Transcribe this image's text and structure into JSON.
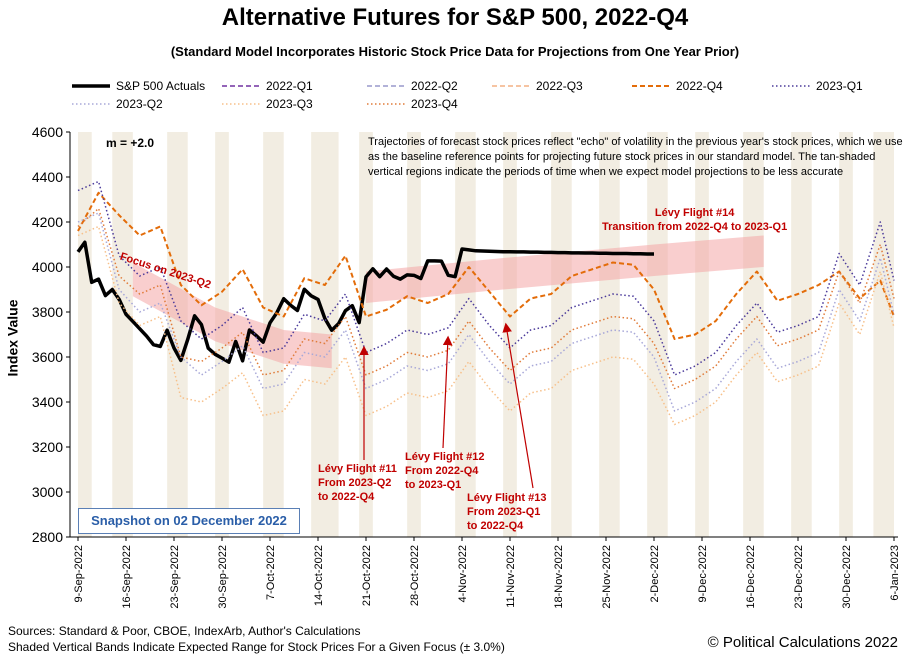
{
  "header": {
    "title": "Alternative Futures for S&P 500, 2022-Q4",
    "subtitle": "(Standard Model Incorporates Historic Stock Price Data for Projections from One Year Prior)"
  },
  "legend": [
    {
      "label": "S&P 500 Actuals",
      "color": "#000000",
      "style": "solid-thick"
    },
    {
      "label": "2022-Q1",
      "color": "#7030a0",
      "style": "dash"
    },
    {
      "label": "2022-Q2",
      "color": "#9999cc",
      "style": "dash"
    },
    {
      "label": "2022-Q3",
      "color": "#f4b183",
      "style": "dash"
    },
    {
      "label": "2022-Q4",
      "color": "#e36c09",
      "style": "dash-thick"
    },
    {
      "label": "2023-Q1",
      "color": "#4b3a9a",
      "style": "dot"
    },
    {
      "label": "2023-Q2",
      "color": "#a8a8d8",
      "style": "dot"
    },
    {
      "label": "2023-Q3",
      "color": "#f7c08a",
      "style": "dot"
    },
    {
      "label": "2023-Q4",
      "color": "#e07b39",
      "style": "dot"
    }
  ],
  "annotations": {
    "slope": "m = +2.0",
    "note": "Trajectories of forecast stock prices reflect \"echo\" of volatility in  the previous year's stock prices, which we use as the baseline reference points for projecting future stock prices in our standard model.   The tan-shaded vertical regions indicate the periods of time when we expect model projections to be less accurate",
    "focus": "Focus on 2023-Q2",
    "levy14": [
      "Lévy Flight #14",
      "Transition from 2022-Q4 to 2023-Q1"
    ],
    "levy11": [
      "Lévy Flight #11",
      "From 2023-Q2",
      "to 2022-Q4"
    ],
    "levy12": [
      "Lévy Flight #12",
      "From 2022-Q4",
      "to 2023-Q1"
    ],
    "levy13": [
      "Lévy Flight #13",
      "From 2023-Q1",
      "to 2022-Q4"
    ],
    "snapshot": "Snapshot on 02 December 2022"
  },
  "footer": {
    "sources": "Sources: Standard & Poor, CBOE, IndexArb, Author's Calculations",
    "bands": "Shaded Vertical Bands Indicate Expected Range for Stock Prices For a Given Focus (± 3.0%)",
    "copyright": "© Political Calculations 2022"
  },
  "chart_data": {
    "type": "line",
    "title": "Alternative Futures for S&P 500, 2022-Q4",
    "xlabel": "",
    "ylabel": "Index Value",
    "ylim": [
      2800,
      4600
    ],
    "yticks": [
      2800,
      3000,
      3200,
      3400,
      3600,
      3800,
      4000,
      4200,
      4400,
      4600
    ],
    "xticks": [
      "9-Sep-2022",
      "16-Sep-2022",
      "23-Sep-2022",
      "30-Sep-2022",
      "7-Oct-2022",
      "14-Oct-2022",
      "21-Oct-2022",
      "28-Oct-2022",
      "4-Nov-2022",
      "11-Nov-2022",
      "18-Nov-2022",
      "25-Nov-2022",
      "2-Dec-2022",
      "9-Dec-2022",
      "16-Dec-2022",
      "23-Dec-2022",
      "30-Dec-2022",
      "6-Jan-2023"
    ],
    "x_days": 119,
    "grid": false,
    "legend_position": "top",
    "series": [
      {
        "name": "S&P 500 Actuals",
        "day": [
          0,
          1,
          2,
          3,
          4,
          5,
          6,
          7,
          8,
          10,
          11,
          12,
          13,
          14,
          15,
          16,
          17,
          18,
          19,
          20,
          21,
          22,
          23,
          24,
          25,
          26,
          27,
          28,
          29,
          30,
          31,
          32,
          33,
          34,
          35,
          36,
          37,
          38,
          39,
          40,
          41,
          42,
          43,
          44,
          45,
          46,
          47,
          48,
          49,
          50,
          51,
          52,
          53,
          54,
          55,
          56,
          57,
          58,
          59,
          60,
          61,
          62,
          63,
          64,
          65,
          66,
          67,
          68,
          69,
          70,
          71,
          72,
          73,
          74,
          75,
          76,
          77,
          78,
          79,
          80,
          81,
          82,
          83,
          84
        ],
        "values": [
          4067,
          4110,
          3932,
          3946,
          3873,
          3900,
          3856,
          3790,
          3758,
          3693,
          3655,
          3647,
          3719,
          3640,
          3585,
          3678,
          3783,
          3744,
          3639,
          3612,
          3595,
          3577,
          3669,
          3583,
          3720,
          3695,
          3666,
          3752,
          3797,
          3859,
          3830,
          3807,
          3901,
          3872,
          3856,
          3771,
          3719,
          3748,
          3806,
          3828,
          3753,
          3956,
          3992,
          3957,
          3991,
          3959,
          3946,
          3965,
          3963,
          3949,
          4027,
          4027,
          4026,
          3963,
          3957,
          4080,
          4076,
          4072,
          4071,
          4070,
          4069,
          4068,
          4068,
          4067,
          4067,
          4066,
          4066,
          4065,
          4065,
          4064,
          4064,
          4063,
          4063,
          4062,
          4062,
          4061,
          4061,
          4060,
          4060,
          4060,
          4059,
          4059,
          4058,
          4058
        ]
      },
      {
        "name": "2022-Q1",
        "values": []
      },
      {
        "name": "2022-Q2",
        "values": []
      },
      {
        "name": "2022-Q3",
        "values": []
      },
      {
        "name": "2022-Q4",
        "day": [
          0,
          3,
          6,
          9,
          12,
          15,
          18,
          21,
          24,
          27,
          30,
          33,
          36,
          39,
          42,
          45,
          48,
          51,
          54,
          57,
          60,
          63,
          66,
          69,
          72,
          75,
          78,
          81,
          84,
          87,
          90,
          93,
          96,
          99,
          102,
          105,
          108,
          111,
          114,
          117,
          119
        ],
        "values": [
          4160,
          4330,
          4230,
          4140,
          4180,
          3920,
          3830,
          3890,
          3990,
          3820,
          3780,
          3950,
          3920,
          4050,
          3780,
          3810,
          3870,
          3840,
          3880,
          4000,
          3890,
          3780,
          3860,
          3880,
          3960,
          3990,
          4020,
          4010,
          3900,
          3680,
          3700,
          3760,
          3880,
          3980,
          3850,
          3880,
          3920,
          3980,
          3860,
          3940,
          3780
        ]
      },
      {
        "name": "2023-Q1",
        "day": [
          0,
          3,
          6,
          9,
          12,
          15,
          18,
          21,
          24,
          27,
          30,
          33,
          36,
          39,
          42,
          45,
          48,
          51,
          54,
          57,
          60,
          63,
          66,
          69,
          72,
          75,
          78,
          81,
          84,
          87,
          90,
          93,
          96,
          99,
          102,
          105,
          108,
          111,
          114,
          117,
          119
        ],
        "values": [
          4340,
          4380,
          4050,
          3960,
          4000,
          3760,
          3680,
          3740,
          3820,
          3620,
          3640,
          3790,
          3760,
          3880,
          3620,
          3660,
          3720,
          3700,
          3730,
          3860,
          3740,
          3640,
          3720,
          3740,
          3820,
          3850,
          3880,
          3870,
          3760,
          3520,
          3560,
          3620,
          3740,
          3840,
          3710,
          3740,
          3780,
          4060,
          3920,
          4200,
          3940
        ]
      },
      {
        "name": "2023-Q2",
        "day": [
          0,
          3,
          6,
          9,
          12,
          15,
          18,
          21,
          24,
          27,
          30,
          33,
          36,
          39,
          42,
          45,
          48,
          51,
          54,
          57,
          60,
          63,
          66,
          69,
          72,
          75,
          78,
          81,
          84,
          87,
          90,
          93,
          96,
          99,
          102,
          105,
          108,
          111,
          114,
          117,
          119
        ],
        "values": [
          4200,
          4240,
          3900,
          3800,
          3840,
          3600,
          3520,
          3580,
          3650,
          3460,
          3480,
          3620,
          3600,
          3720,
          3460,
          3500,
          3560,
          3540,
          3570,
          3700,
          3580,
          3480,
          3560,
          3580,
          3660,
          3690,
          3720,
          3710,
          3600,
          3360,
          3400,
          3460,
          3580,
          3680,
          3550,
          3580,
          3620,
          3900,
          3760,
          4040,
          3790
        ]
      },
      {
        "name": "2023-Q3",
        "day": [
          0,
          3,
          6,
          9,
          12,
          15,
          18,
          21,
          24,
          27,
          30,
          33,
          36,
          39,
          42,
          45,
          48,
          51,
          54,
          57,
          60,
          63,
          66,
          69,
          72,
          75,
          78,
          81,
          84,
          87,
          90,
          93,
          96,
          99,
          102,
          105,
          108,
          111,
          114,
          117,
          119
        ],
        "values": [
          4140,
          4180,
          3840,
          3740,
          3780,
          3420,
          3400,
          3460,
          3530,
          3340,
          3360,
          3500,
          3480,
          3600,
          3340,
          3380,
          3440,
          3420,
          3450,
          3580,
          3460,
          3360,
          3440,
          3460,
          3540,
          3570,
          3600,
          3590,
          3480,
          3300,
          3340,
          3400,
          3520,
          3620,
          3490,
          3520,
          3560,
          3840,
          3700,
          3980,
          3730
        ]
      },
      {
        "name": "2023-Q4",
        "day": [
          0,
          3,
          6,
          9,
          12,
          15,
          18,
          21,
          24,
          27,
          30,
          33,
          36,
          39,
          42,
          45,
          48,
          51,
          54,
          57,
          60,
          63,
          66,
          69,
          72,
          75,
          78,
          81,
          84,
          87,
          90,
          93,
          96,
          99,
          102,
          105,
          108,
          111,
          114,
          117,
          119
        ],
        "values": [
          4180,
          4260,
          3960,
          3880,
          3920,
          3600,
          3580,
          3640,
          3710,
          3520,
          3540,
          3680,
          3660,
          3780,
          3520,
          3560,
          3620,
          3600,
          3630,
          3760,
          3640,
          3540,
          3620,
          3640,
          3720,
          3750,
          3780,
          3770,
          3660,
          3460,
          3500,
          3560,
          3680,
          3780,
          3650,
          3680,
          3720,
          3980,
          3840,
          4100,
          3860
        ]
      }
    ],
    "shaded_regions_days": [
      [
        0,
        2
      ],
      [
        5,
        8
      ],
      [
        13,
        16
      ],
      [
        20,
        22
      ],
      [
        27,
        30
      ],
      [
        34,
        38
      ],
      [
        41,
        43
      ],
      [
        48,
        50
      ],
      [
        55,
        58
      ],
      [
        62,
        64
      ],
      [
        69,
        72
      ],
      [
        76,
        79
      ],
      [
        83,
        86
      ],
      [
        90,
        92
      ],
      [
        97,
        100
      ],
      [
        104,
        107
      ],
      [
        111,
        113
      ],
      [
        116,
        119
      ]
    ]
  }
}
